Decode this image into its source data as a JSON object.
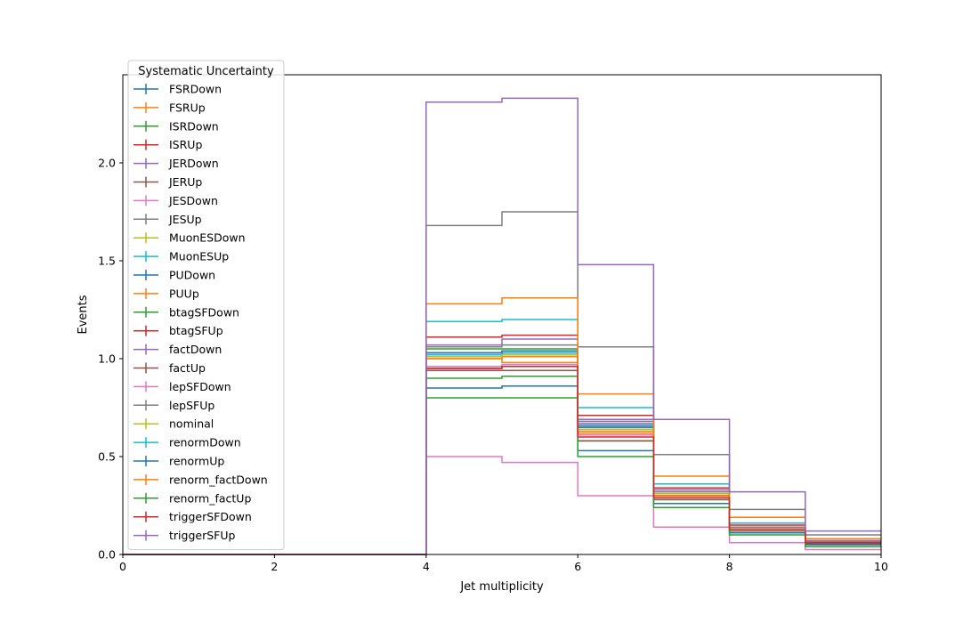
{
  "chart_data": {
    "type": "line",
    "drawstyle": "steps",
    "title": "",
    "xlabel": "Jet multiplicity",
    "ylabel": "Events",
    "xlim": [
      0,
      10
    ],
    "ylim": [
      0,
      2.45
    ],
    "xticks": [
      0,
      2,
      4,
      6,
      8,
      10
    ],
    "yticks": [
      0,
      0.5,
      1.0,
      1.5,
      2.0
    ],
    "xtick_labels": [
      "0",
      "2",
      "4",
      "6",
      "8",
      "10"
    ],
    "ytick_labels": [
      "0.0",
      "0.5",
      "1.0",
      "1.5",
      "2.0"
    ],
    "grid": false,
    "legend": {
      "title": "Systematic Uncertainty",
      "placement": "upper-left"
    },
    "bin_edges": [
      0,
      1,
      2,
      3,
      4,
      5,
      6,
      7,
      8,
      9,
      10
    ],
    "series": [
      {
        "name": "FSRDown",
        "color": "#1f77b4",
        "values": [
          0,
          0,
          0,
          0,
          1.02,
          1.03,
          0.66,
          0.3,
          0.13,
          0.06
        ]
      },
      {
        "name": "FSRUp",
        "color": "#ff7f0e",
        "values": [
          0,
          0,
          0,
          0,
          1.0,
          0.98,
          0.62,
          0.32,
          0.14,
          0.06
        ]
      },
      {
        "name": "ISRDown",
        "color": "#2ca02c",
        "values": [
          0,
          0,
          0,
          0,
          1.05,
          1.05,
          0.65,
          0.31,
          0.13,
          0.06
        ]
      },
      {
        "name": "ISRUp",
        "color": "#d62728",
        "values": [
          0,
          0,
          0,
          0,
          0.95,
          0.96,
          0.61,
          0.3,
          0.13,
          0.06
        ]
      },
      {
        "name": "JERDown",
        "color": "#9467bd",
        "values": [
          0,
          0,
          0,
          0,
          1.03,
          1.04,
          0.67,
          0.32,
          0.14,
          0.06
        ]
      },
      {
        "name": "JERUp",
        "color": "#8c564b",
        "values": [
          0,
          0,
          0,
          0,
          1.01,
          1.02,
          0.64,
          0.31,
          0.13,
          0.06
        ]
      },
      {
        "name": "JESDown",
        "color": "#e377c2",
        "values": [
          0,
          0,
          0,
          0,
          0.5,
          0.47,
          0.3,
          0.14,
          0.06,
          0.025
        ]
      },
      {
        "name": "JESUp",
        "color": "#7f7f7f",
        "values": [
          0,
          0,
          0,
          0,
          1.68,
          1.75,
          1.06,
          0.51,
          0.23,
          0.1
        ]
      },
      {
        "name": "MuonESDown",
        "color": "#bcbd22",
        "values": [
          0,
          0,
          0,
          0,
          1.01,
          1.02,
          0.64,
          0.31,
          0.13,
          0.06
        ]
      },
      {
        "name": "MuonESUp",
        "color": "#17becf",
        "values": [
          0,
          0,
          0,
          0,
          1.02,
          1.03,
          0.65,
          0.31,
          0.13,
          0.06
        ]
      },
      {
        "name": "PUDown",
        "color": "#1f77b4",
        "values": [
          0,
          0,
          0,
          0,
          1.03,
          1.04,
          0.65,
          0.31,
          0.13,
          0.06
        ]
      },
      {
        "name": "PUUp",
        "color": "#ff7f0e",
        "values": [
          0,
          0,
          0,
          0,
          1.0,
          1.01,
          0.63,
          0.3,
          0.13,
          0.06
        ]
      },
      {
        "name": "btagSFDown",
        "color": "#2ca02c",
        "values": [
          0,
          0,
          0,
          0,
          0.9,
          0.91,
          0.58,
          0.28,
          0.12,
          0.05
        ]
      },
      {
        "name": "btagSFUp",
        "color": "#d62728",
        "values": [
          0,
          0,
          0,
          0,
          1.11,
          1.12,
          0.71,
          0.34,
          0.15,
          0.07
        ]
      },
      {
        "name": "factDown",
        "color": "#9467bd",
        "values": [
          0,
          0,
          0,
          0,
          1.07,
          1.1,
          0.69,
          0.33,
          0.14,
          0.07
        ]
      },
      {
        "name": "factUp",
        "color": "#8c564b",
        "values": [
          0,
          0,
          0,
          0,
          0.94,
          0.94,
          0.58,
          0.28,
          0.12,
          0.055
        ]
      },
      {
        "name": "lepSFDown",
        "color": "#e377c2",
        "values": [
          0,
          0,
          0,
          0,
          0.96,
          0.97,
          0.61,
          0.29,
          0.13,
          0.06
        ]
      },
      {
        "name": "lepSFUp",
        "color": "#7f7f7f",
        "values": [
          0,
          0,
          0,
          0,
          1.06,
          1.07,
          0.68,
          0.32,
          0.14,
          0.065
        ]
      },
      {
        "name": "nominal",
        "color": "#bcbd22",
        "values": [
          0,
          0,
          0,
          0,
          1.01,
          1.02,
          0.64,
          0.31,
          0.13,
          0.06
        ]
      },
      {
        "name": "renormDown",
        "color": "#17becf",
        "values": [
          0,
          0,
          0,
          0,
          1.19,
          1.2,
          0.75,
          0.36,
          0.16,
          0.08
        ]
      },
      {
        "name": "renormUp",
        "color": "#1f77b4",
        "values": [
          0,
          0,
          0,
          0,
          0.85,
          0.86,
          0.53,
          0.26,
          0.11,
          0.05
        ]
      },
      {
        "name": "renorm_factDown",
        "color": "#ff7f0e",
        "values": [
          0,
          0,
          0,
          0,
          1.28,
          1.31,
          0.82,
          0.4,
          0.19,
          0.08
        ]
      },
      {
        "name": "renorm_factUp",
        "color": "#2ca02c",
        "values": [
          0,
          0,
          0,
          0,
          0.8,
          0.8,
          0.5,
          0.24,
          0.1,
          0.04
        ]
      },
      {
        "name": "triggerSFDown",
        "color": "#d62728",
        "values": [
          0,
          0,
          0,
          0,
          0.95,
          0.96,
          0.6,
          0.29,
          0.13,
          0.06
        ]
      },
      {
        "name": "triggerSFUp",
        "color": "#9467bd",
        "values": [
          0,
          0,
          0,
          0,
          2.31,
          2.33,
          1.48,
          0.69,
          0.32,
          0.12
        ]
      }
    ]
  }
}
